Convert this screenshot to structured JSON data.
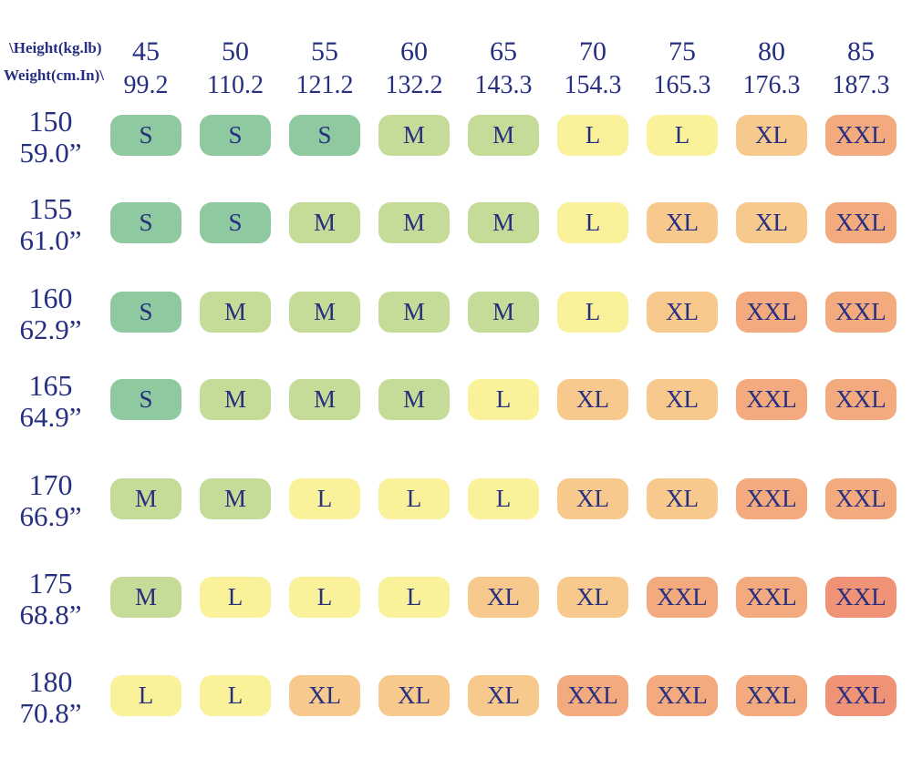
{
  "page": {
    "background": "#ffffff",
    "text_color": "#262f80"
  },
  "corner": {
    "line1": "\\Height(kg.lb)",
    "line2": "Weight(cm.In)\\"
  },
  "columns": [
    {
      "kg": "45",
      "lb": "99.2"
    },
    {
      "kg": "50",
      "lb": "110.2"
    },
    {
      "kg": "55",
      "lb": "121.2"
    },
    {
      "kg": "60",
      "lb": "132.2"
    },
    {
      "kg": "65",
      "lb": "143.3"
    },
    {
      "kg": "70",
      "lb": "154.3"
    },
    {
      "kg": "75",
      "lb": "165.3"
    },
    {
      "kg": "80",
      "lb": "176.3"
    },
    {
      "kg": "85",
      "lb": "187.3"
    }
  ],
  "rows": [
    {
      "cm": "150",
      "inch": "59.0”",
      "cells": [
        "S",
        "S",
        "S",
        "M",
        "M",
        "L",
        "L",
        "XL",
        "XXL"
      ]
    },
    {
      "cm": "155",
      "inch": "61.0”",
      "cells": [
        "S",
        "S",
        "M",
        "M",
        "M",
        "L",
        "XL",
        "XL",
        "XXL"
      ]
    },
    {
      "cm": "160",
      "inch": "62.9”",
      "cells": [
        "S",
        "M",
        "M",
        "M",
        "M",
        "L",
        "XL",
        "XXL",
        "XXL"
      ]
    },
    {
      "cm": "165",
      "inch": "64.9”",
      "cells": [
        "S",
        "M",
        "M",
        "M",
        "L",
        "XL",
        "XL",
        "XXL",
        "XXL"
      ]
    },
    {
      "cm": "170",
      "inch": "66.9”",
      "cells": [
        "M",
        "M",
        "L",
        "L",
        "L",
        "XL",
        "XL",
        "XXL",
        "XXL"
      ]
    },
    {
      "cm": "175",
      "inch": "68.8”",
      "cells": [
        "M",
        "L",
        "L",
        "L",
        "XL",
        "XL",
        "XXL",
        "XXL",
        "XXL"
      ]
    },
    {
      "cm": "180",
      "inch": "70.8”",
      "cells": [
        "L",
        "L",
        "XL",
        "XL",
        "XL",
        "XXL",
        "XXL",
        "XXL",
        "XXL"
      ]
    }
  ],
  "palette": {
    "S": "#8fc9a0",
    "M": "#c5dc98",
    "L": "#faf19b",
    "XL": "#f7c98d",
    "XXL": "#f2aa7e"
  },
  "cell_color_overrides": {
    "r5c8": "#ef9276",
    "r6c8": "#ef9276"
  },
  "chart_data": {
    "type": "heatmap",
    "columns_axis_label": "\\Height(kg.lb)",
    "rows_axis_label": "Weight(cm.In)\\",
    "columns_kg": [
      45,
      50,
      55,
      60,
      65,
      70,
      75,
      80,
      85
    ],
    "columns_lb": [
      99.2,
      110.2,
      121.2,
      132.2,
      143.3,
      154.3,
      165.3,
      176.3,
      187.3
    ],
    "rows_cm": [
      150,
      155,
      160,
      165,
      170,
      175,
      180
    ],
    "rows_in": [
      59.0,
      61.0,
      62.9,
      64.9,
      66.9,
      68.8,
      70.8
    ],
    "matrix": [
      [
        "S",
        "S",
        "S",
        "M",
        "M",
        "L",
        "L",
        "XL",
        "XXL"
      ],
      [
        "S",
        "S",
        "M",
        "M",
        "M",
        "L",
        "XL",
        "XL",
        "XXL"
      ],
      [
        "S",
        "M",
        "M",
        "M",
        "M",
        "L",
        "XL",
        "XXL",
        "XXL"
      ],
      [
        "S",
        "M",
        "M",
        "M",
        "L",
        "XL",
        "XL",
        "XXL",
        "XXL"
      ],
      [
        "M",
        "M",
        "L",
        "L",
        "L",
        "XL",
        "XL",
        "XXL",
        "XXL"
      ],
      [
        "M",
        "L",
        "L",
        "L",
        "XL",
        "XL",
        "XXL",
        "XXL",
        "XXL"
      ],
      [
        "L",
        "L",
        "XL",
        "XL",
        "XL",
        "XXL",
        "XXL",
        "XXL",
        "XXL"
      ]
    ]
  }
}
